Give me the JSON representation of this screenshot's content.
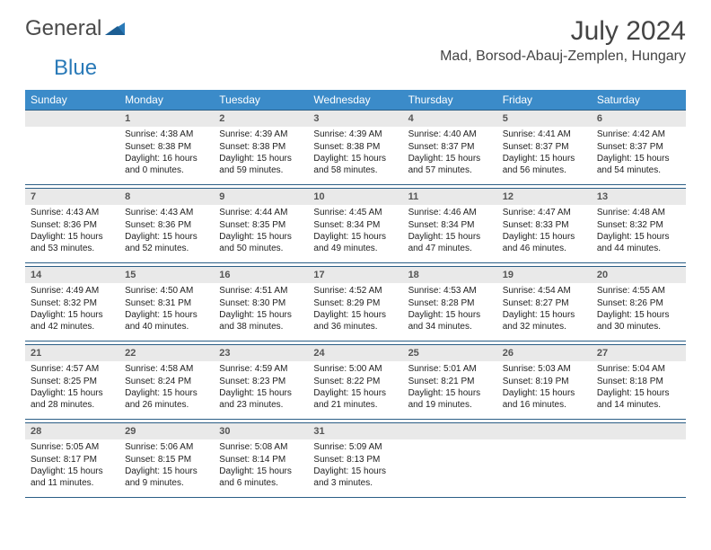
{
  "brand": {
    "text1": "General",
    "text2": "Blue"
  },
  "title": "July 2024",
  "subtitle": "Mad, Borsod-Abauj-Zemplen, Hungary",
  "colors": {
    "header_bg": "#3b8bc9",
    "header_text": "#ffffff",
    "daynum_bg": "#e9e9e9",
    "cell_border": "#2b5e86",
    "brand_blue": "#2a7ab8"
  },
  "dow": [
    "Sunday",
    "Monday",
    "Tuesday",
    "Wednesday",
    "Thursday",
    "Friday",
    "Saturday"
  ],
  "weeks": [
    [
      null,
      {
        "n": "1",
        "sr": "4:38 AM",
        "ss": "8:38 PM",
        "dl": "16 hours and 0 minutes."
      },
      {
        "n": "2",
        "sr": "4:39 AM",
        "ss": "8:38 PM",
        "dl": "15 hours and 59 minutes."
      },
      {
        "n": "3",
        "sr": "4:39 AM",
        "ss": "8:38 PM",
        "dl": "15 hours and 58 minutes."
      },
      {
        "n": "4",
        "sr": "4:40 AM",
        "ss": "8:37 PM",
        "dl": "15 hours and 57 minutes."
      },
      {
        "n": "5",
        "sr": "4:41 AM",
        "ss": "8:37 PM",
        "dl": "15 hours and 56 minutes."
      },
      {
        "n": "6",
        "sr": "4:42 AM",
        "ss": "8:37 PM",
        "dl": "15 hours and 54 minutes."
      }
    ],
    [
      {
        "n": "7",
        "sr": "4:43 AM",
        "ss": "8:36 PM",
        "dl": "15 hours and 53 minutes."
      },
      {
        "n": "8",
        "sr": "4:43 AM",
        "ss": "8:36 PM",
        "dl": "15 hours and 52 minutes."
      },
      {
        "n": "9",
        "sr": "4:44 AM",
        "ss": "8:35 PM",
        "dl": "15 hours and 50 minutes."
      },
      {
        "n": "10",
        "sr": "4:45 AM",
        "ss": "8:34 PM",
        "dl": "15 hours and 49 minutes."
      },
      {
        "n": "11",
        "sr": "4:46 AM",
        "ss": "8:34 PM",
        "dl": "15 hours and 47 minutes."
      },
      {
        "n": "12",
        "sr": "4:47 AM",
        "ss": "8:33 PM",
        "dl": "15 hours and 46 minutes."
      },
      {
        "n": "13",
        "sr": "4:48 AM",
        "ss": "8:32 PM",
        "dl": "15 hours and 44 minutes."
      }
    ],
    [
      {
        "n": "14",
        "sr": "4:49 AM",
        "ss": "8:32 PM",
        "dl": "15 hours and 42 minutes."
      },
      {
        "n": "15",
        "sr": "4:50 AM",
        "ss": "8:31 PM",
        "dl": "15 hours and 40 minutes."
      },
      {
        "n": "16",
        "sr": "4:51 AM",
        "ss": "8:30 PM",
        "dl": "15 hours and 38 minutes."
      },
      {
        "n": "17",
        "sr": "4:52 AM",
        "ss": "8:29 PM",
        "dl": "15 hours and 36 minutes."
      },
      {
        "n": "18",
        "sr": "4:53 AM",
        "ss": "8:28 PM",
        "dl": "15 hours and 34 minutes."
      },
      {
        "n": "19",
        "sr": "4:54 AM",
        "ss": "8:27 PM",
        "dl": "15 hours and 32 minutes."
      },
      {
        "n": "20",
        "sr": "4:55 AM",
        "ss": "8:26 PM",
        "dl": "15 hours and 30 minutes."
      }
    ],
    [
      {
        "n": "21",
        "sr": "4:57 AM",
        "ss": "8:25 PM",
        "dl": "15 hours and 28 minutes."
      },
      {
        "n": "22",
        "sr": "4:58 AM",
        "ss": "8:24 PM",
        "dl": "15 hours and 26 minutes."
      },
      {
        "n": "23",
        "sr": "4:59 AM",
        "ss": "8:23 PM",
        "dl": "15 hours and 23 minutes."
      },
      {
        "n": "24",
        "sr": "5:00 AM",
        "ss": "8:22 PM",
        "dl": "15 hours and 21 minutes."
      },
      {
        "n": "25",
        "sr": "5:01 AM",
        "ss": "8:21 PM",
        "dl": "15 hours and 19 minutes."
      },
      {
        "n": "26",
        "sr": "5:03 AM",
        "ss": "8:19 PM",
        "dl": "15 hours and 16 minutes."
      },
      {
        "n": "27",
        "sr": "5:04 AM",
        "ss": "8:18 PM",
        "dl": "15 hours and 14 minutes."
      }
    ],
    [
      {
        "n": "28",
        "sr": "5:05 AM",
        "ss": "8:17 PM",
        "dl": "15 hours and 11 minutes."
      },
      {
        "n": "29",
        "sr": "5:06 AM",
        "ss": "8:15 PM",
        "dl": "15 hours and 9 minutes."
      },
      {
        "n": "30",
        "sr": "5:08 AM",
        "ss": "8:14 PM",
        "dl": "15 hours and 6 minutes."
      },
      {
        "n": "31",
        "sr": "5:09 AM",
        "ss": "8:13 PM",
        "dl": "15 hours and 3 minutes."
      },
      null,
      null,
      null
    ]
  ],
  "labels": {
    "sunrise": "Sunrise: ",
    "sunset": "Sunset: ",
    "daylight": "Daylight: "
  }
}
